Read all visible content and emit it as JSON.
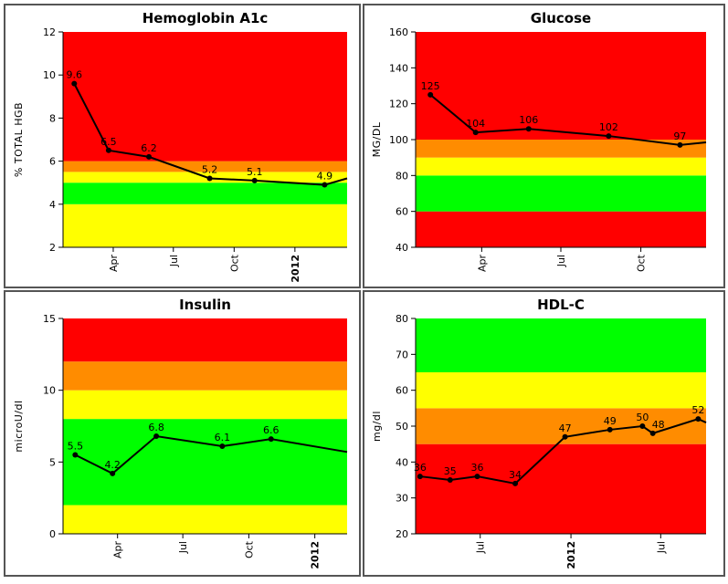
{
  "chart_data": [
    {
      "type": "line",
      "title": "Hemoglobin A1c",
      "ylabel": "% TOTAL HGB",
      "ylim": [
        2,
        12
      ],
      "yticks": [
        "2",
        "4",
        "6",
        "8",
        "10",
        "12"
      ],
      "xticks": [
        {
          "label": "Apr",
          "bold": false
        },
        {
          "label": "Jul",
          "bold": false
        },
        {
          "label": "Oct",
          "bold": false
        },
        {
          "label": "2012",
          "bold": true
        }
      ],
      "bands": [
        {
          "from": 2,
          "to": 4,
          "color": "#ffff00"
        },
        {
          "from": 4,
          "to": 5,
          "color": "#00ff00"
        },
        {
          "from": 5,
          "to": 5.5,
          "color": "#ffff00"
        },
        {
          "from": 5.5,
          "to": 6,
          "color": "#ff8c00"
        },
        {
          "from": 6,
          "to": 12,
          "color": "#ff0000"
        }
      ],
      "series": [
        {
          "points": [
            {
              "x": "2011-02-01",
              "y": 9.6
            },
            {
              "x": "2011-03-25",
              "y": 6.5
            },
            {
              "x": "2011-05-25",
              "y": 6.2
            },
            {
              "x": "2011-08-25",
              "y": 5.2
            },
            {
              "x": "2011-11-01",
              "y": 5.1
            },
            {
              "x": "2012-02-15",
              "y": 4.9
            }
          ]
        }
      ]
    },
    {
      "type": "line",
      "title": "Glucose",
      "ylabel": "MG/DL",
      "ylim": [
        40,
        160
      ],
      "yticks": [
        "40",
        "60",
        "80",
        "100",
        "120",
        "140",
        "160"
      ],
      "xticks": [
        {
          "label": "Apr",
          "bold": false
        },
        {
          "label": "Jul",
          "bold": false
        },
        {
          "label": "Oct",
          "bold": false
        }
      ],
      "bands": [
        {
          "from": 40,
          "to": 60,
          "color": "#ff0000"
        },
        {
          "from": 60,
          "to": 80,
          "color": "#00ff00"
        },
        {
          "from": 80,
          "to": 90,
          "color": "#ffff00"
        },
        {
          "from": 90,
          "to": 100,
          "color": "#ff8c00"
        },
        {
          "from": 100,
          "to": 160,
          "color": "#ff0000"
        }
      ],
      "series": [
        {
          "points": [
            {
              "x": "2011-02-01",
              "y": 125
            },
            {
              "x": "2011-03-25",
              "y": 104
            },
            {
              "x": "2011-05-25",
              "y": 106
            },
            {
              "x": "2011-08-25",
              "y": 102
            },
            {
              "x": "2011-11-15",
              "y": 97
            }
          ]
        }
      ]
    },
    {
      "type": "line",
      "title": "Insulin",
      "ylabel": "microU/dl",
      "ylim": [
        0,
        15
      ],
      "yticks": [
        "0",
        "5",
        "10",
        "15"
      ],
      "xticks": [
        {
          "label": "Apr",
          "bold": false
        },
        {
          "label": "Jul",
          "bold": false
        },
        {
          "label": "Oct",
          "bold": false
        },
        {
          "label": "2012",
          "bold": true
        }
      ],
      "bands": [
        {
          "from": 0,
          "to": 2,
          "color": "#ffff00"
        },
        {
          "from": 2,
          "to": 8,
          "color": "#00ff00"
        },
        {
          "from": 8,
          "to": 10,
          "color": "#ffff00"
        },
        {
          "from": 10,
          "to": 12,
          "color": "#ff8c00"
        },
        {
          "from": 12,
          "to": 15,
          "color": "#ff0000"
        }
      ],
      "series": [
        {
          "points": [
            {
              "x": "2011-02-01",
              "y": 5.5
            },
            {
              "x": "2011-03-25",
              "y": 4.2
            },
            {
              "x": "2011-05-25",
              "y": 6.8
            },
            {
              "x": "2011-08-25",
              "y": 6.1
            },
            {
              "x": "2011-11-01",
              "y": 6.6
            }
          ]
        }
      ]
    },
    {
      "type": "line",
      "title": "HDL-C",
      "ylabel": "mg/dl",
      "ylim": [
        20,
        80
      ],
      "yticks": [
        "20",
        "30",
        "40",
        "50",
        "60",
        "70",
        "80"
      ],
      "xticks": [
        {
          "label": "Jul",
          "bold": false
        },
        {
          "label": "2012",
          "bold": true
        },
        {
          "label": "Jul",
          "bold": false
        }
      ],
      "bands": [
        {
          "from": 20,
          "to": 45,
          "color": "#ff0000"
        },
        {
          "from": 45,
          "to": 55,
          "color": "#ff8c00"
        },
        {
          "from": 55,
          "to": 65,
          "color": "#ffff00"
        },
        {
          "from": 65,
          "to": 80,
          "color": "#00ff00"
        }
      ],
      "series": [
        {
          "points": [
            {
              "x": "2011-03-01",
              "y": 36
            },
            {
              "x": "2011-05-01",
              "y": 35
            },
            {
              "x": "2011-06-25",
              "y": 36
            },
            {
              "x": "2011-09-10",
              "y": 34
            },
            {
              "x": "2011-12-20",
              "y": 47
            },
            {
              "x": "2012-03-20",
              "y": 49
            },
            {
              "x": "2012-05-25",
              "y": 50
            },
            {
              "x": "2012-06-15",
              "y": 48
            },
            {
              "x": "2012-09-15",
              "y": 52
            }
          ]
        }
      ]
    }
  ]
}
